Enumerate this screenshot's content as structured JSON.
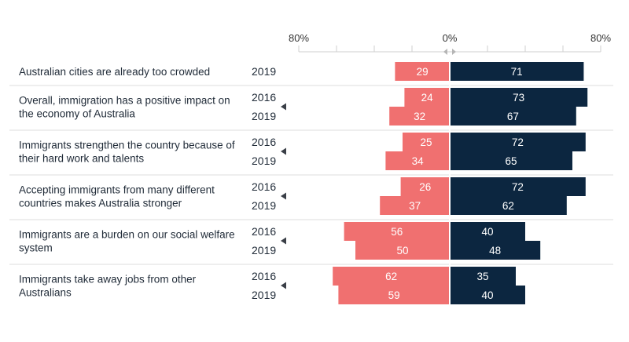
{
  "chart_data": {
    "type": "bar",
    "orientation": "horizontal-diverging",
    "axis": {
      "left_label": "80%",
      "center_label": "0%",
      "right_label": "80%",
      "range": [
        -80,
        80
      ]
    },
    "colors": {
      "disagree": "#f07070",
      "agree": "#0c2640",
      "text": "#1f2a37",
      "grid": "#cfcfcf",
      "marker": "#3a3f47"
    },
    "groups": [
      {
        "statement": "Australian cities are already too crowded",
        "rows": [
          {
            "year": "2019",
            "disagree": 29,
            "agree": 71
          }
        ]
      },
      {
        "statement": "Overall, immigration has a positive impact on the economy of Australia",
        "rows": [
          {
            "year": "2016",
            "disagree": 24,
            "agree": 73
          },
          {
            "year": "2019",
            "disagree": 32,
            "agree": 67
          }
        ]
      },
      {
        "statement": "Immigrants strengthen the country because of their hard work and talents",
        "rows": [
          {
            "year": "2016",
            "disagree": 25,
            "agree": 72
          },
          {
            "year": "2019",
            "disagree": 34,
            "agree": 65
          }
        ]
      },
      {
        "statement": "Accepting immigrants from many different countries makes Australia stronger",
        "rows": [
          {
            "year": "2016",
            "disagree": 26,
            "agree": 72
          },
          {
            "year": "2019",
            "disagree": 37,
            "agree": 62
          }
        ]
      },
      {
        "statement": "Immigrants are a burden on our social welfare system",
        "rows": [
          {
            "year": "2016",
            "disagree": 56,
            "agree": 40
          },
          {
            "year": "2019",
            "disagree": 50,
            "agree": 48
          }
        ]
      },
      {
        "statement": "Immigrants take away jobs from other Australians",
        "rows": [
          {
            "year": "2016",
            "disagree": 62,
            "agree": 35
          },
          {
            "year": "2019",
            "disagree": 59,
            "agree": 40
          }
        ]
      }
    ]
  }
}
